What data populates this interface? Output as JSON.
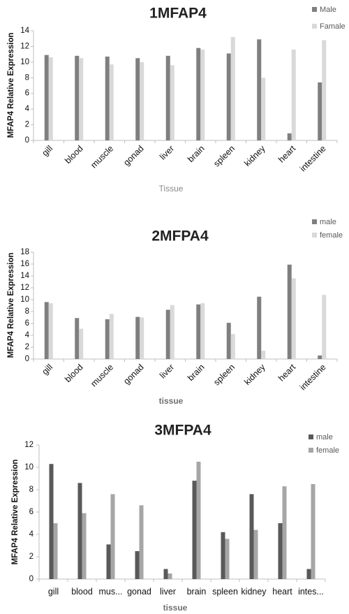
{
  "chart_data": [
    {
      "type": "bar",
      "title": "1MFAP4",
      "xlabel": "Tissue",
      "ylabel": "MFAP4 Relative Expression",
      "ylim": [
        0,
        14
      ],
      "yticks": [
        0,
        2,
        4,
        6,
        8,
        10,
        12,
        14
      ],
      "grid": false,
      "legend_position": "top-right",
      "categories": [
        "gill",
        "blood",
        "muscle",
        "gonad",
        "liver",
        "brain",
        "spleen",
        "kidney",
        "heart",
        "intestine"
      ],
      "series": [
        {
          "name": "Male",
          "color": "#7f7f7f",
          "values": [
            10.9,
            10.8,
            10.7,
            10.5,
            10.8,
            11.8,
            11.1,
            12.9,
            0.9,
            7.4
          ]
        },
        {
          "name": "Famale",
          "color": "#d9d9d9",
          "values": [
            10.6,
            10.5,
            9.7,
            10.0,
            9.6,
            11.6,
            13.2,
            8.0,
            11.6,
            12.8
          ]
        }
      ]
    },
    {
      "type": "bar",
      "title": "2MFPA4",
      "xlabel": "tissue",
      "ylabel": "MFAP4 Relative Expression",
      "ylim": [
        0,
        18
      ],
      "yticks": [
        0,
        2,
        4,
        6,
        8,
        10,
        12,
        14,
        16,
        18
      ],
      "grid": false,
      "legend_position": "top-right",
      "categories": [
        "gill",
        "blood",
        "muscle",
        "gonad",
        "liver",
        "brain",
        "spleen",
        "kidney",
        "heart",
        "intestine"
      ],
      "series": [
        {
          "name": "male",
          "color": "#7f7f7f",
          "values": [
            9.6,
            6.9,
            6.7,
            7.1,
            8.3,
            9.2,
            6.1,
            10.5,
            15.9,
            0.6
          ]
        },
        {
          "name": "female",
          "color": "#d9d9d9",
          "values": [
            9.4,
            5.1,
            7.6,
            7.0,
            9.1,
            9.4,
            4.2,
            1.4,
            13.6,
            10.8
          ]
        }
      ]
    },
    {
      "type": "bar",
      "title": "3MFPA4",
      "xlabel": "tissue",
      "ylabel": "MFAP4 Relative Expression",
      "ylim": [
        0,
        12
      ],
      "yticks": [
        0,
        2,
        4,
        6,
        8,
        10,
        12
      ],
      "grid": false,
      "legend_position": "top-right",
      "categories": [
        "gill",
        "blood",
        "mus...",
        "gonad",
        "liver",
        "brain",
        "spleen",
        "kidney",
        "heart",
        "intes..."
      ],
      "series": [
        {
          "name": "male",
          "color": "#595959",
          "values": [
            10.3,
            8.6,
            3.1,
            2.5,
            0.9,
            8.8,
            4.2,
            7.6,
            5.0,
            0.9
          ]
        },
        {
          "name": "female",
          "color": "#a6a6a6",
          "values": [
            5.0,
            5.9,
            7.6,
            6.6,
            0.5,
            10.5,
            3.6,
            4.4,
            8.3,
            8.5
          ]
        }
      ]
    }
  ]
}
